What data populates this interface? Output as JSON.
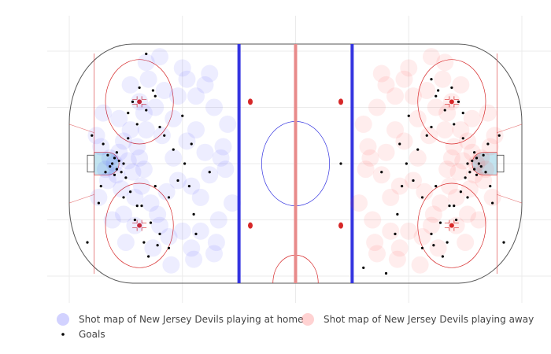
{
  "chart_data": {
    "type": "scatter",
    "title": "",
    "xlabel": "",
    "ylabel": "",
    "xlim": [
      -100,
      100
    ],
    "ylim": [
      -42.5,
      42.5
    ],
    "grid": true,
    "legend_placement": "bottom-left",
    "colors": {
      "home": "#3b3bff",
      "away": "#ff3b3b",
      "goals": "#000000",
      "blue_line": "#3434e0",
      "red_line": "#e88a8a",
      "rink_red": "#d62728"
    },
    "series": [
      {
        "name": "Shot map of New Jersey Devils playing  at home",
        "points": [
          [
            -80,
            0
          ],
          [
            -82,
            2
          ],
          [
            -84,
            -2
          ],
          [
            -78,
            4
          ],
          [
            -79,
            -4
          ],
          [
            -86,
            6
          ],
          [
            -83,
            -6
          ],
          [
            -76,
            8
          ],
          [
            -77,
            -9
          ],
          [
            -74,
            1
          ],
          [
            -72,
            -3
          ],
          [
            -70,
            6
          ],
          [
            -68,
            -8
          ],
          [
            -66,
            12
          ],
          [
            -64,
            -14
          ],
          [
            -62,
            20
          ],
          [
            -60,
            -22
          ],
          [
            -58,
            26
          ],
          [
            -56,
            -26
          ],
          [
            -54,
            16
          ],
          [
            -69,
            22
          ],
          [
            -71,
            -22
          ],
          [
            -73,
            28
          ],
          [
            -75,
            -28
          ],
          [
            -65,
            30
          ],
          [
            -63,
            -30
          ],
          [
            -67,
            18
          ],
          [
            -61,
            -18
          ],
          [
            -59,
            10
          ],
          [
            -57,
            -10
          ],
          [
            -52,
            24
          ],
          [
            -50,
            -24
          ],
          [
            -48,
            30
          ],
          [
            -46,
            -30
          ],
          [
            -44,
            12
          ],
          [
            -42,
            -12
          ],
          [
            -40,
            4
          ],
          [
            -38,
            -4
          ],
          [
            -36,
            20
          ],
          [
            -34,
            -20
          ],
          [
            -66,
            36
          ],
          [
            -60,
            38
          ],
          [
            -55,
            -36
          ],
          [
            -50,
            34
          ],
          [
            -45,
            -34
          ],
          [
            -40,
            28
          ],
          [
            -35,
            -28
          ],
          [
            -30,
            14
          ],
          [
            -28,
            -14
          ],
          [
            -32,
            6
          ],
          [
            -88,
            10
          ],
          [
            -87,
            -12
          ],
          [
            -85,
            18
          ],
          [
            -81,
            -20
          ],
          [
            -78,
            16
          ],
          [
            -76,
            -18
          ],
          [
            -73,
            12
          ],
          [
            -71,
            -12
          ],
          [
            -69,
            2
          ],
          [
            -67,
            -2
          ],
          [
            -54,
            2
          ],
          [
            -52,
            -6
          ],
          [
            -48,
            8
          ],
          [
            -46,
            -8
          ],
          [
            -44,
            24
          ],
          [
            -42,
            -24
          ],
          [
            -38,
            32
          ],
          [
            -36,
            -32
          ],
          [
            -33,
            2
          ],
          [
            -31,
            -2
          ]
        ]
      },
      {
        "name": "Shot map of New Jersey Devils playing  away",
        "points": [
          [
            80,
            0
          ],
          [
            82,
            2
          ],
          [
            84,
            -2
          ],
          [
            78,
            4
          ],
          [
            79,
            -4
          ],
          [
            86,
            6
          ],
          [
            83,
            -6
          ],
          [
            76,
            8
          ],
          [
            77,
            -9
          ],
          [
            74,
            1
          ],
          [
            72,
            -3
          ],
          [
            70,
            6
          ],
          [
            68,
            -8
          ],
          [
            66,
            12
          ],
          [
            64,
            -14
          ],
          [
            62,
            20
          ],
          [
            60,
            -22
          ],
          [
            58,
            26
          ],
          [
            56,
            -26
          ],
          [
            54,
            16
          ],
          [
            69,
            22
          ],
          [
            71,
            -22
          ],
          [
            73,
            28
          ],
          [
            75,
            -28
          ],
          [
            65,
            30
          ],
          [
            63,
            -30
          ],
          [
            67,
            18
          ],
          [
            61,
            -18
          ],
          [
            59,
            10
          ],
          [
            57,
            -10
          ],
          [
            52,
            24
          ],
          [
            50,
            -24
          ],
          [
            48,
            30
          ],
          [
            46,
            -30
          ],
          [
            44,
            12
          ],
          [
            42,
            -12
          ],
          [
            40,
            4
          ],
          [
            38,
            -4
          ],
          [
            36,
            20
          ],
          [
            34,
            -20
          ],
          [
            66,
            36
          ],
          [
            60,
            38
          ],
          [
            55,
            -36
          ],
          [
            50,
            34
          ],
          [
            45,
            -34
          ],
          [
            40,
            28
          ],
          [
            35,
            -28
          ],
          [
            30,
            14
          ],
          [
            28,
            -14
          ],
          [
            32,
            6
          ],
          [
            88,
            10
          ],
          [
            87,
            -12
          ],
          [
            85,
            18
          ],
          [
            81,
            -20
          ],
          [
            78,
            16
          ],
          [
            76,
            -18
          ],
          [
            73,
            12
          ],
          [
            71,
            -12
          ],
          [
            69,
            2
          ],
          [
            67,
            -2
          ],
          [
            54,
            2
          ],
          [
            52,
            -6
          ],
          [
            48,
            8
          ],
          [
            46,
            -8
          ],
          [
            44,
            24
          ],
          [
            42,
            -24
          ],
          [
            38,
            32
          ],
          [
            36,
            -32
          ],
          [
            33,
            2
          ],
          [
            31,
            -2
          ]
        ]
      },
      {
        "name": "Goals",
        "points": [
          [
            -81,
            0
          ],
          [
            -80,
            2
          ],
          [
            -79,
            -2
          ],
          [
            -82,
            -1
          ],
          [
            -78,
            1
          ],
          [
            -83,
            3
          ],
          [
            -77,
            -3
          ],
          [
            -80,
            -4
          ],
          [
            -84,
            -3
          ],
          [
            -79,
            4
          ],
          [
            -76,
            0
          ],
          [
            -75,
            -5
          ],
          [
            -85,
            7
          ],
          [
            -86,
            -8
          ],
          [
            -74,
            9
          ],
          [
            -73,
            -10
          ],
          [
            -70,
            14
          ],
          [
            -68,
            -15
          ],
          [
            -66,
            19
          ],
          [
            -64,
            -21
          ],
          [
            -62,
            24
          ],
          [
            -60,
            -25
          ],
          [
            -58,
            10
          ],
          [
            -56,
            -12
          ],
          [
            -54,
            5
          ],
          [
            -52,
            -6
          ],
          [
            -49,
            0
          ],
          [
            -47,
            -8
          ],
          [
            -45,
            -18
          ],
          [
            -44,
            -25
          ],
          [
            -72,
            22
          ],
          [
            -69,
            27
          ],
          [
            -67,
            -28
          ],
          [
            -65,
            -33
          ],
          [
            -63,
            26
          ],
          [
            -61,
            -29
          ],
          [
            -71,
            -20
          ],
          [
            -70,
            -15
          ],
          [
            -74,
            18
          ],
          [
            -76,
            -12
          ],
          [
            -90,
            10
          ],
          [
            -87,
            -14
          ],
          [
            -66,
            39
          ],
          [
            -92,
            -28
          ],
          [
            -56,
            -30
          ],
          [
            -50,
            17
          ],
          [
            -38,
            -3
          ],
          [
            -46,
            7
          ],
          [
            -60,
            13
          ],
          [
            -62,
            -8
          ],
          [
            81,
            0
          ],
          [
            80,
            2
          ],
          [
            79,
            -2
          ],
          [
            82,
            -1
          ],
          [
            78,
            1
          ],
          [
            83,
            3
          ],
          [
            77,
            -3
          ],
          [
            80,
            -4
          ],
          [
            84,
            -3
          ],
          [
            79,
            4
          ],
          [
            76,
            0
          ],
          [
            75,
            -5
          ],
          [
            85,
            7
          ],
          [
            86,
            -8
          ],
          [
            74,
            9
          ],
          [
            73,
            -10
          ],
          [
            70,
            14
          ],
          [
            68,
            -15
          ],
          [
            66,
            19
          ],
          [
            64,
            -21
          ],
          [
            62,
            24
          ],
          [
            60,
            -25
          ],
          [
            58,
            10
          ],
          [
            56,
            -12
          ],
          [
            54,
            5
          ],
          [
            52,
            -6
          ],
          [
            49,
            0
          ],
          [
            47,
            -8
          ],
          [
            45,
            -18
          ],
          [
            44,
            -25
          ],
          [
            72,
            22
          ],
          [
            69,
            27
          ],
          [
            67,
            -28
          ],
          [
            65,
            -33
          ],
          [
            63,
            26
          ],
          [
            61,
            -29
          ],
          [
            71,
            -20
          ],
          [
            70,
            -15
          ],
          [
            74,
            18
          ],
          [
            76,
            -12
          ],
          [
            90,
            10
          ],
          [
            87,
            -14
          ],
          [
            60,
            30
          ],
          [
            92,
            -28
          ],
          [
            56,
            -30
          ],
          [
            50,
            17
          ],
          [
            38,
            -3
          ],
          [
            46,
            7
          ],
          [
            60,
            13
          ],
          [
            62,
            -8
          ],
          [
            20,
            0
          ],
          [
            30,
            -37
          ],
          [
            40,
            -39
          ]
        ]
      }
    ]
  }
}
